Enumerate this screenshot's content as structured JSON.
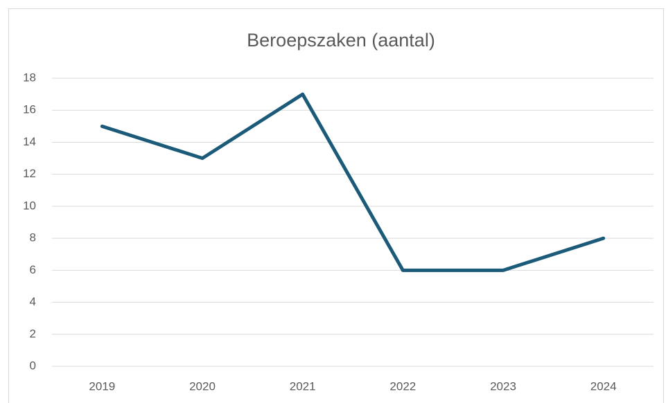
{
  "chart_data": {
    "type": "line",
    "title": "Beroepszaken (aantal)",
    "categories": [
      "2019",
      "2020",
      "2021",
      "2022",
      "2023",
      "2024"
    ],
    "series": [
      {
        "name": "Beroepszaken",
        "color": "#1b5b79",
        "values": [
          15,
          13,
          17,
          6,
          6,
          8
        ]
      }
    ],
    "ylim": [
      0,
      18
    ],
    "yticks": [
      0,
      2,
      4,
      6,
      8,
      10,
      12,
      14,
      16,
      18
    ],
    "grid": true
  }
}
